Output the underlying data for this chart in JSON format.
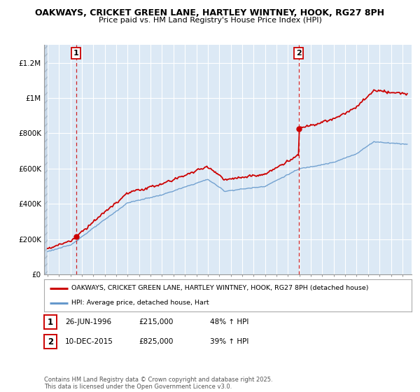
{
  "title1": "OAKWAYS, CRICKET GREEN LANE, HARTLEY WINTNEY, HOOK, RG27 8PH",
  "title2": "Price paid vs. HM Land Registry's House Price Index (HPI)",
  "ylim": [
    0,
    1300000
  ],
  "yticks": [
    0,
    200000,
    400000,
    600000,
    800000,
    1000000,
    1200000
  ],
  "ytick_labels": [
    "£0",
    "£200K",
    "£400K",
    "£600K",
    "£800K",
    "£1M",
    "£1.2M"
  ],
  "line1_label": "OAKWAYS, CRICKET GREEN LANE, HARTLEY WINTNEY, HOOK, RG27 8PH (detached house)",
  "line2_label": "HPI: Average price, detached house, Hart",
  "line1_color": "#cc0000",
  "line2_color": "#6699cc",
  "marker1_date": 1996.49,
  "marker1_price": 215000,
  "marker2_date": 2015.94,
  "marker2_price": 825000,
  "vline1_x": 1996.49,
  "vline2_x": 2015.94,
  "annotation1_num": "1",
  "annotation2_num": "2",
  "table_row1": [
    "1",
    "26-JUN-1996",
    "£215,000",
    "48% ↑ HPI"
  ],
  "table_row2": [
    "2",
    "10-DEC-2015",
    "£825,000",
    "39% ↑ HPI"
  ],
  "footer": "Contains HM Land Registry data © Crown copyright and database right 2025.\nThis data is licensed under the Open Government Licence v3.0.",
  "background_color": "#ffffff",
  "plot_bg": "#dce9f5",
  "grid_color": "#ffffff",
  "xlim_left": 1993.7,
  "xlim_right": 2025.8,
  "xstart": 1994,
  "xend": 2025
}
